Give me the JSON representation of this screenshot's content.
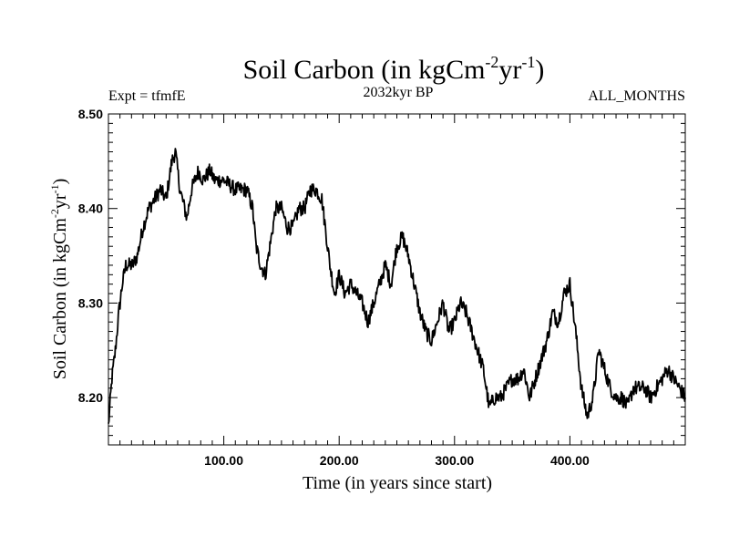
{
  "chart_data": {
    "type": "line",
    "title": "Soil Carbon (in kgCm",
    "title_sup1": "-2",
    "title_mid": "yr",
    "title_sup2": "-1",
    "title_end": ")",
    "subtitle_left": "Expt = tfmfE",
    "subtitle_center": "2032kyr BP",
    "subtitle_right": "ALL_MONTHS",
    "xlabel": "Time (in years since start)",
    "ylabel": "Soil Carbon (in kgCm",
    "ylabel_sup1": "-2",
    "ylabel_mid": "yr",
    "ylabel_sup2": "-1",
    "ylabel_end": ")",
    "xlim": [
      0,
      500
    ],
    "ylim": [
      8.15,
      8.5
    ],
    "x_ticks": [
      {
        "value": 100,
        "label": "100.00"
      },
      {
        "value": 200,
        "label": "200.00"
      },
      {
        "value": 300,
        "label": "300.00"
      },
      {
        "value": 400,
        "label": "400.00"
      }
    ],
    "y_ticks": [
      {
        "value": 8.2,
        "label": "8.20"
      },
      {
        "value": 8.3,
        "label": "8.30"
      },
      {
        "value": 8.4,
        "label": "8.40"
      },
      {
        "value": 8.5,
        "label": "8.50"
      }
    ],
    "series": [
      {
        "x": [
          0,
          3,
          6,
          9,
          12,
          15,
          18,
          21,
          25,
          30,
          35,
          40,
          45,
          50,
          55,
          58,
          62,
          68,
          72,
          78,
          82,
          88,
          92,
          100,
          110,
          120,
          125,
          128,
          132,
          136,
          140,
          145,
          150,
          155,
          160,
          165,
          170,
          175,
          180,
          185,
          188,
          192,
          196,
          200,
          205,
          210,
          215,
          220,
          225,
          230,
          235,
          240,
          245,
          250,
          255,
          260,
          265,
          270,
          275,
          280,
          285,
          290,
          295,
          300,
          305,
          310,
          315,
          320,
          325,
          330,
          335,
          340,
          345,
          350,
          355,
          360,
          365,
          370,
          375,
          380,
          385,
          390,
          395,
          400,
          405,
          410,
          415,
          420,
          425,
          430,
          435,
          440,
          445,
          450,
          455,
          460,
          465,
          470,
          475,
          480,
          485,
          490,
          495,
          500
        ],
        "y": [
          8.17,
          8.22,
          8.25,
          8.29,
          8.32,
          8.34,
          8.34,
          8.34,
          8.35,
          8.38,
          8.4,
          8.41,
          8.42,
          8.41,
          8.45,
          8.46,
          8.42,
          8.39,
          8.42,
          8.44,
          8.43,
          8.44,
          8.43,
          8.43,
          8.42,
          8.42,
          8.4,
          8.36,
          8.34,
          8.33,
          8.36,
          8.4,
          8.4,
          8.38,
          8.38,
          8.4,
          8.4,
          8.42,
          8.42,
          8.41,
          8.38,
          8.34,
          8.31,
          8.33,
          8.31,
          8.32,
          8.31,
          8.3,
          8.28,
          8.3,
          8.32,
          8.34,
          8.32,
          8.36,
          8.37,
          8.35,
          8.32,
          8.29,
          8.27,
          8.26,
          8.28,
          8.3,
          8.27,
          8.28,
          8.3,
          8.29,
          8.27,
          8.25,
          8.23,
          8.19,
          8.2,
          8.2,
          8.21,
          8.22,
          8.22,
          8.23,
          8.2,
          8.22,
          8.24,
          8.26,
          8.29,
          8.28,
          8.31,
          8.32,
          8.27,
          8.21,
          8.18,
          8.2,
          8.25,
          8.23,
          8.21,
          8.2,
          8.2,
          8.19,
          8.21,
          8.21,
          8.21,
          8.2,
          8.21,
          8.22,
          8.23,
          8.22,
          8.21,
          8.2
        ]
      }
    ],
    "grid": false,
    "line_color": "#000000"
  }
}
